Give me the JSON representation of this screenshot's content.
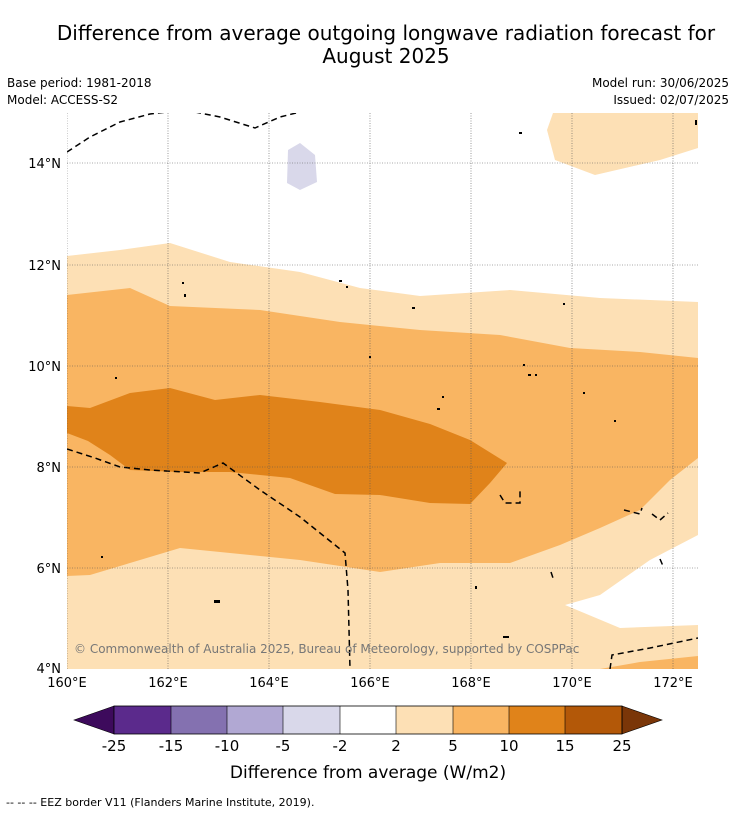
{
  "title": "Difference from average outgoing longwave radiation forecast for August 2025",
  "title_lines": [
    "Difference from average outgoing longwave radiation forecast for",
    "August 2025"
  ],
  "base_period": "Base period: 1981-2018",
  "model": "Model: ACCESS-S2",
  "model_run": "Model run: 30/06/2025",
  "issued": "Issued: 02/07/2025",
  "copyright": "© Commonwealth of Australia 2025, Bureau of Meteorology, supported by COSPPac",
  "map": {
    "lon_range": [
      160,
      172.5
    ],
    "lat_range": [
      4,
      15
    ],
    "lon_ticks": [
      "160°E",
      "162°E",
      "164°E",
      "166°E",
      "168°E",
      "170°E",
      "172°E"
    ],
    "lat_ticks": [
      "4°N",
      "6°N",
      "8°N",
      "10°N",
      "12°N",
      "14°N"
    ],
    "grid": true
  },
  "colorbar": {
    "label": "Difference from average (W/m2)",
    "tick_labels": [
      "-25",
      "-15",
      "-10",
      "-5",
      "-2",
      "2",
      "5",
      "10",
      "15",
      "25"
    ],
    "colors": [
      "#3d0a5c",
      "#5b2a8c",
      "#8471b0",
      "#b1a8d3",
      "#d9d8ea",
      "#ffffff",
      "#fde0b5",
      "#f9b562",
      "#e0831a",
      "#b35808",
      "#7a3608"
    ]
  },
  "footnote": "-- -- -- EEZ border V11 (Flanders Marine Institute, 2019)."
}
